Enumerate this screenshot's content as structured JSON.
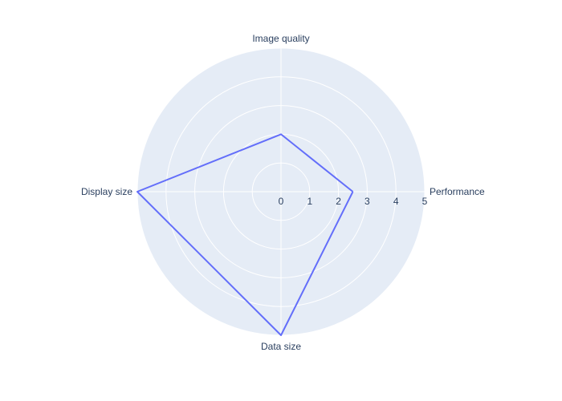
{
  "chart_data": {
    "type": "radar",
    "categories": [
      "Performance",
      "Image quality",
      "Display size",
      "Data size"
    ],
    "series": [
      {
        "values": [
          2.5,
          2,
          5,
          5
        ]
      }
    ],
    "radial_range": [
      0,
      5
    ],
    "radial_ticks": [
      "0",
      "1",
      "2",
      "3",
      "4",
      "5"
    ],
    "grid": true,
    "colors": {
      "plot_background": "#e5ecf6",
      "grid": "#ffffff",
      "line": "#636efa",
      "text": "#2a3f5f"
    }
  }
}
